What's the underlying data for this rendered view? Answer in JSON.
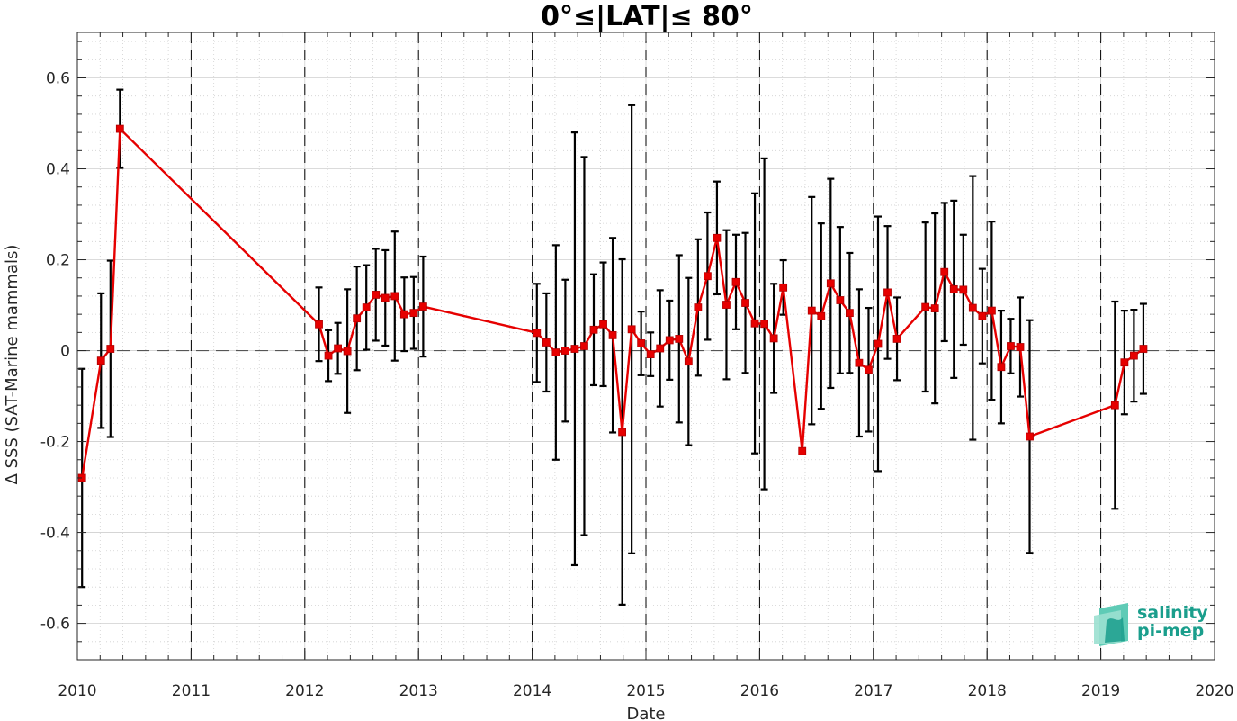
{
  "chart_data": {
    "type": "line",
    "title": "0°≤|LAT|≤ 80°",
    "xlabel": "Date",
    "ylabel": "Δ SSS (SAT-Marine mammals)",
    "x_ticks": [
      "2010",
      "2011",
      "2012",
      "2013",
      "2014",
      "2015",
      "2016",
      "2017",
      "2018",
      "2019",
      "2020"
    ],
    "y_ticks": [
      "0.6",
      "0.4",
      "0.2",
      "0",
      "-0.2",
      "-0.4",
      "-0.6"
    ],
    "xlim": [
      "2010-01-01",
      "2020-01-01"
    ],
    "ylim": [
      -0.68,
      0.7
    ],
    "grid": true,
    "zero_line": true,
    "year_boundaries_dashed": true,
    "series": [
      {
        "type": "line-errorbar",
        "color": "#e60000",
        "errorbar_color": "#000000",
        "points": [
          {
            "date": "2010-01-16",
            "y": -0.28,
            "err": 0.24
          },
          {
            "date": "2010-03-16",
            "y": -0.022,
            "err": 0.148
          },
          {
            "date": "2010-04-16",
            "y": 0.004,
            "err": 0.194
          },
          {
            "date": "2010-05-16",
            "y": 0.488,
            "err": 0.086
          },
          {
            "date": "2012-02-16",
            "y": 0.058,
            "err": 0.081
          },
          {
            "date": "2012-03-16",
            "y": -0.011,
            "err": 0.056
          },
          {
            "date": "2012-04-16",
            "y": 0.005,
            "err": 0.056
          },
          {
            "date": "2012-05-16",
            "y": -0.001,
            "err": 0.136
          },
          {
            "date": "2012-06-16",
            "y": 0.071,
            "err": 0.114
          },
          {
            "date": "2012-07-16",
            "y": 0.095,
            "err": 0.093
          },
          {
            "date": "2012-08-16",
            "y": 0.123,
            "err": 0.101
          },
          {
            "date": "2012-09-16",
            "y": 0.116,
            "err": 0.105
          },
          {
            "date": "2012-10-16",
            "y": 0.12,
            "err": 0.142
          },
          {
            "date": "2012-11-16",
            "y": 0.08,
            "err": 0.081
          },
          {
            "date": "2012-12-16",
            "y": 0.083,
            "err": 0.079
          },
          {
            "date": "2013-01-16",
            "y": 0.097,
            "err": 0.11
          },
          {
            "date": "2014-01-16",
            "y": 0.039,
            "err": 0.108
          },
          {
            "date": "2014-02-16",
            "y": 0.018,
            "err": 0.108
          },
          {
            "date": "2014-03-16",
            "y": -0.004,
            "err": 0.236
          },
          {
            "date": "2014-04-16",
            "y": 0.0,
            "err": 0.156
          },
          {
            "date": "2014-05-16",
            "y": 0.004,
            "err": 0.476
          },
          {
            "date": "2014-06-16",
            "y": 0.01,
            "err": 0.416
          },
          {
            "date": "2014-07-16",
            "y": 0.046,
            "err": 0.122
          },
          {
            "date": "2014-08-16",
            "y": 0.058,
            "err": 0.136
          },
          {
            "date": "2014-09-16",
            "y": 0.034,
            "err": 0.214
          },
          {
            "date": "2014-10-16",
            "y": -0.179,
            "err": 0.38
          },
          {
            "date": "2014-11-16",
            "y": 0.047,
            "err": 0.493
          },
          {
            "date": "2014-12-16",
            "y": 0.016,
            "err": 0.07
          },
          {
            "date": "2015-01-16",
            "y": -0.008,
            "err": 0.048
          },
          {
            "date": "2015-02-16",
            "y": 0.005,
            "err": 0.128
          },
          {
            "date": "2015-03-16",
            "y": 0.023,
            "err": 0.087
          },
          {
            "date": "2015-04-16",
            "y": 0.026,
            "err": 0.184
          },
          {
            "date": "2015-05-16",
            "y": -0.024,
            "err": 0.184
          },
          {
            "date": "2015-06-16",
            "y": 0.095,
            "err": 0.15
          },
          {
            "date": "2015-07-16",
            "y": 0.164,
            "err": 0.14
          },
          {
            "date": "2015-08-16",
            "y": 0.248,
            "err": 0.124
          },
          {
            "date": "2015-09-16",
            "y": 0.101,
            "err": 0.164
          },
          {
            "date": "2015-10-16",
            "y": 0.151,
            "err": 0.104
          },
          {
            "date": "2015-11-16",
            "y": 0.105,
            "err": 0.154
          },
          {
            "date": "2015-12-16",
            "y": 0.06,
            "err": 0.286
          },
          {
            "date": "2016-01-16",
            "y": 0.059,
            "err": 0.364
          },
          {
            "date": "2016-02-16",
            "y": 0.027,
            "err": 0.12
          },
          {
            "date": "2016-03-16",
            "y": 0.139,
            "err": 0.06
          },
          {
            "date": "2016-05-16",
            "y": -0.221,
            "err": 0.006
          },
          {
            "date": "2016-06-16",
            "y": 0.088,
            "err": 0.25
          },
          {
            "date": "2016-07-16",
            "y": 0.076,
            "err": 0.204
          },
          {
            "date": "2016-08-16",
            "y": 0.148,
            "err": 0.23
          },
          {
            "date": "2016-09-16",
            "y": 0.111,
            "err": 0.161
          },
          {
            "date": "2016-10-16",
            "y": 0.083,
            "err": 0.132
          },
          {
            "date": "2016-11-16",
            "y": -0.027,
            "err": 0.162
          },
          {
            "date": "2016-12-16",
            "y": -0.042,
            "err": 0.136
          },
          {
            "date": "2017-01-16",
            "y": 0.015,
            "err": 0.28
          },
          {
            "date": "2017-02-16",
            "y": 0.128,
            "err": 0.146
          },
          {
            "date": "2017-03-16",
            "y": 0.026,
            "err": 0.091
          },
          {
            "date": "2017-06-16",
            "y": 0.096,
            "err": 0.186
          },
          {
            "date": "2017-07-16",
            "y": 0.093,
            "err": 0.209
          },
          {
            "date": "2017-08-16",
            "y": 0.173,
            "err": 0.152
          },
          {
            "date": "2017-09-16",
            "y": 0.135,
            "err": 0.195
          },
          {
            "date": "2017-10-16",
            "y": 0.134,
            "err": 0.121
          },
          {
            "date": "2017-11-16",
            "y": 0.094,
            "err": 0.29
          },
          {
            "date": "2017-12-16",
            "y": 0.076,
            "err": 0.104
          },
          {
            "date": "2018-01-16",
            "y": 0.088,
            "err": 0.196
          },
          {
            "date": "2018-02-16",
            "y": -0.036,
            "err": 0.124
          },
          {
            "date": "2018-03-16",
            "y": 0.01,
            "err": 0.06
          },
          {
            "date": "2018-04-16",
            "y": 0.008,
            "err": 0.109
          },
          {
            "date": "2018-05-16",
            "y": -0.189,
            "err": 0.256
          },
          {
            "date": "2019-02-16",
            "y": -0.12,
            "err": 0.228
          },
          {
            "date": "2019-03-16",
            "y": -0.026,
            "err": 0.114
          },
          {
            "date": "2019-04-16",
            "y": -0.011,
            "err": 0.101
          },
          {
            "date": "2019-05-16",
            "y": 0.004,
            "err": 0.099
          }
        ]
      }
    ]
  },
  "logo": {
    "line1": "salinity",
    "line2": "pi-mep",
    "color": "#1a9e8c"
  }
}
